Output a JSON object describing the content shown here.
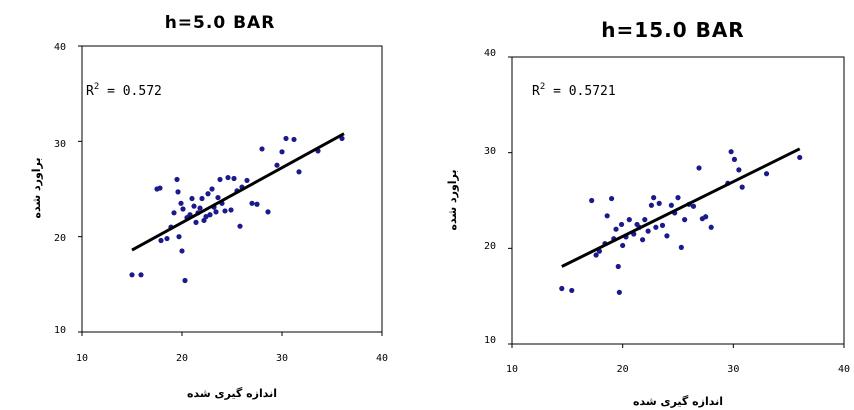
{
  "chart_data": [
    {
      "type": "scatter",
      "title": "h=5.0 BAR",
      "xlabel": "اندازه گیری شده",
      "ylabel": "براورد شده",
      "xlim": [
        10,
        40
      ],
      "ylim": [
        10,
        40
      ],
      "xticks": [
        "10",
        "20",
        "30",
        "40"
      ],
      "yticks": [
        "10",
        "20",
        "30",
        "40"
      ],
      "annotation": {
        "prefix": "R",
        "sup": "2",
        "text": " = 0.572"
      },
      "trendline": {
        "x": [
          15,
          36.2
        ],
        "y": [
          18.6,
          30.8
        ]
      },
      "points": [
        [
          15.0,
          16.0
        ],
        [
          15.9,
          16.0
        ],
        [
          17.5,
          25.0
        ],
        [
          17.8,
          25.1
        ],
        [
          17.9,
          19.6
        ],
        [
          18.5,
          19.8
        ],
        [
          18.9,
          21.0
        ],
        [
          19.2,
          22.5
        ],
        [
          19.5,
          26.0
        ],
        [
          19.6,
          24.7
        ],
        [
          19.7,
          20.0
        ],
        [
          19.9,
          23.5
        ],
        [
          20.0,
          18.5
        ],
        [
          20.1,
          22.9
        ],
        [
          20.3,
          15.4
        ],
        [
          20.5,
          22.0
        ],
        [
          20.8,
          22.3
        ],
        [
          21.0,
          24.0
        ],
        [
          21.2,
          23.2
        ],
        [
          21.4,
          21.5
        ],
        [
          21.6,
          22.5
        ],
        [
          21.8,
          23.0
        ],
        [
          22.0,
          24.0
        ],
        [
          22.2,
          21.7
        ],
        [
          22.4,
          22.1
        ],
        [
          22.6,
          24.5
        ],
        [
          22.8,
          22.3
        ],
        [
          23.0,
          25.0
        ],
        [
          23.2,
          23.1
        ],
        [
          23.4,
          22.6
        ],
        [
          23.6,
          24.1
        ],
        [
          23.8,
          26.0
        ],
        [
          24.0,
          23.5
        ],
        [
          24.3,
          22.7
        ],
        [
          24.6,
          26.2
        ],
        [
          24.9,
          22.8
        ],
        [
          25.2,
          26.1
        ],
        [
          25.5,
          24.8
        ],
        [
          25.8,
          21.1
        ],
        [
          26.0,
          25.2
        ],
        [
          26.5,
          25.9
        ],
        [
          27.0,
          23.5
        ],
        [
          27.5,
          23.4
        ],
        [
          28.0,
          29.2
        ],
        [
          28.6,
          22.6
        ],
        [
          29.5,
          27.5
        ],
        [
          30.0,
          28.9
        ],
        [
          30.4,
          30.3
        ],
        [
          31.2,
          30.2
        ],
        [
          31.7,
          26.8
        ],
        [
          33.6,
          29.0
        ],
        [
          36.0,
          30.3
        ]
      ]
    },
    {
      "type": "scatter",
      "title": "h=15.0 BAR",
      "xlabel": "اندازه گیری شده",
      "ylabel": "براورد شده",
      "xlim": [
        10,
        40
      ],
      "ylim": [
        10,
        40
      ],
      "xticks": [
        "10",
        "20",
        "30",
        "40"
      ],
      "yticks": [
        "10",
        "20",
        "30",
        "40"
      ],
      "annotation": {
        "prefix": "R",
        "sup": "2",
        "text": " = 0.5721"
      },
      "trendline": {
        "x": [
          14.5,
          36
        ],
        "y": [
          18.1,
          30.4
        ]
      },
      "points": [
        [
          14.5,
          15.8
        ],
        [
          15.4,
          15.6
        ],
        [
          17.2,
          25.0
        ],
        [
          17.6,
          19.3
        ],
        [
          17.9,
          19.7
        ],
        [
          18.4,
          20.5
        ],
        [
          18.6,
          23.4
        ],
        [
          19.0,
          25.2
        ],
        [
          19.2,
          21.0
        ],
        [
          19.4,
          22.0
        ],
        [
          19.6,
          18.1
        ],
        [
          19.7,
          15.4
        ],
        [
          19.9,
          22.5
        ],
        [
          20.0,
          20.3
        ],
        [
          20.3,
          21.2
        ],
        [
          20.6,
          23.0
        ],
        [
          21.0,
          21.5
        ],
        [
          21.3,
          22.5
        ],
        [
          21.5,
          22.2
        ],
        [
          21.8,
          20.9
        ],
        [
          22.0,
          23.0
        ],
        [
          22.3,
          21.8
        ],
        [
          22.6,
          24.5
        ],
        [
          22.8,
          25.3
        ],
        [
          23.0,
          22.2
        ],
        [
          23.3,
          24.7
        ],
        [
          23.6,
          22.4
        ],
        [
          24.0,
          21.3
        ],
        [
          24.4,
          24.5
        ],
        [
          24.7,
          23.7
        ],
        [
          25.0,
          25.3
        ],
        [
          25.3,
          20.1
        ],
        [
          25.6,
          23.0
        ],
        [
          26.0,
          24.6
        ],
        [
          26.4,
          24.4
        ],
        [
          26.9,
          28.4
        ],
        [
          27.2,
          23.1
        ],
        [
          27.5,
          23.3
        ],
        [
          28.0,
          22.2
        ],
        [
          29.5,
          26.8
        ],
        [
          29.8,
          30.1
        ],
        [
          30.1,
          29.3
        ],
        [
          30.5,
          28.2
        ],
        [
          30.8,
          26.4
        ],
        [
          33.0,
          27.8
        ],
        [
          36.0,
          29.5
        ]
      ]
    }
  ]
}
